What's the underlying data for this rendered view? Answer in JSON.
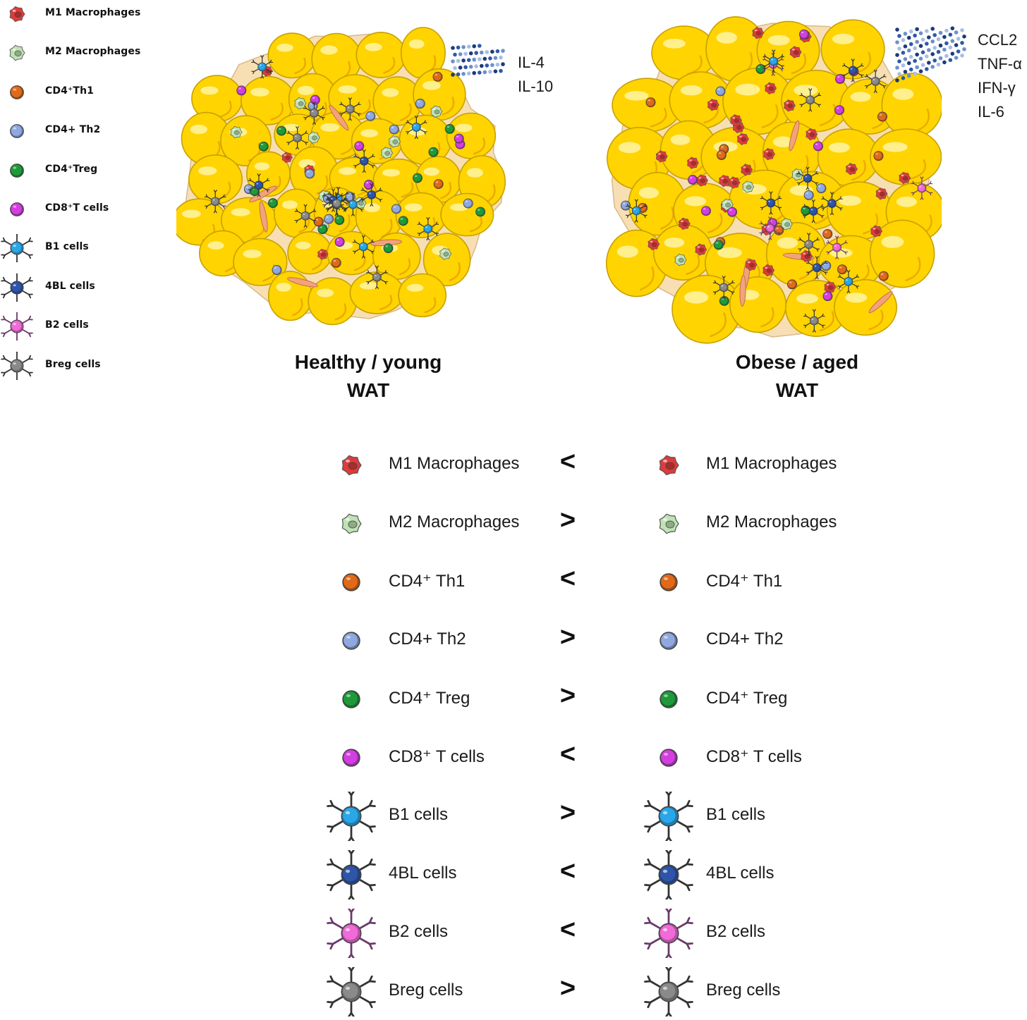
{
  "legend": {
    "items": [
      {
        "label": "M1 Macrophages",
        "icon": "m1-macrophage-icon"
      },
      {
        "label": "M2 Macrophages",
        "icon": "m2-macrophage-icon"
      },
      {
        "label": "CD4⁺Th1",
        "icon": "cd4-th1-icon"
      },
      {
        "label": "CD4+ Th2",
        "icon": "cd4-th2-icon"
      },
      {
        "label": "CD4⁺Treg",
        "icon": "cd4-treg-icon"
      },
      {
        "label": "CD8⁺T cells",
        "icon": "cd8-t-cell-icon"
      },
      {
        "label": "B1 cells",
        "icon": "b1-cell-icon"
      },
      {
        "label": "4BL cells",
        "icon": "4bl-cell-icon"
      },
      {
        "label": "B2 cells",
        "icon": "b2-cell-icon"
      },
      {
        "label": "Breg cells",
        "icon": "breg-cell-icon"
      }
    ]
  },
  "healthy": {
    "title_line1": "Healthy / young",
    "title_line2": "WAT",
    "cytokines": [
      "IL-4",
      "IL-10"
    ]
  },
  "obese": {
    "title_line1": "Obese / aged",
    "title_line2": "WAT",
    "cytokines": [
      "CCL2",
      "TNF-α",
      "IFN-γ",
      "IL-6"
    ]
  },
  "comparison": {
    "rows": [
      {
        "icon": "m1-macrophage-icon",
        "left": "M1 Macrophages",
        "op": "<",
        "right": "M1 Macrophages"
      },
      {
        "icon": "m2-macrophage-icon",
        "left": "M2 Macrophages",
        "op": ">",
        "right": "M2 Macrophages"
      },
      {
        "icon": "cd4-th1-icon",
        "left": "CD4⁺ Th1",
        "op": "<",
        "right": "CD4⁺ Th1"
      },
      {
        "icon": "cd4-th2-icon",
        "left": "CD4+ Th2",
        "op": ">",
        "right": "CD4+ Th2"
      },
      {
        "icon": "cd4-treg-icon",
        "left": "CD4⁺ Treg",
        "op": ">",
        "right": "CD4⁺ Treg"
      },
      {
        "icon": "cd8-t-cell-icon",
        "left": "CD8⁺ T cells",
        "op": "<",
        "right": "CD8⁺ T cells"
      },
      {
        "icon": "b1-cell-icon",
        "left": "B1 cells",
        "op": ">",
        "right": "B1 cells"
      },
      {
        "icon": "4bl-cell-icon",
        "left": "4BL cells",
        "op": "<",
        "right": "4BL cells"
      },
      {
        "icon": "b2-cell-icon",
        "left": "B2 cells",
        "op": "<",
        "right": "B2 cells"
      },
      {
        "icon": "breg-cell-icon",
        "left": "Breg cells",
        "op": ">",
        "right": "Breg cells"
      }
    ]
  },
  "colors": {
    "adipocyte": "#ffd400",
    "adipocyte_edge": "#c9a000",
    "stroma": "#f7dfb3",
    "m1": "#e03a3a",
    "m2": "#bfe3b4",
    "th1": "#e06a1a",
    "th2": "#8fa8e0",
    "treg": "#1f9a3a",
    "cd8": "#d23fe0",
    "b1": "#2aa7e8",
    "bl4": "#2f55a8",
    "b2": "#f06ad8",
    "breg": "#8a8a8a"
  }
}
